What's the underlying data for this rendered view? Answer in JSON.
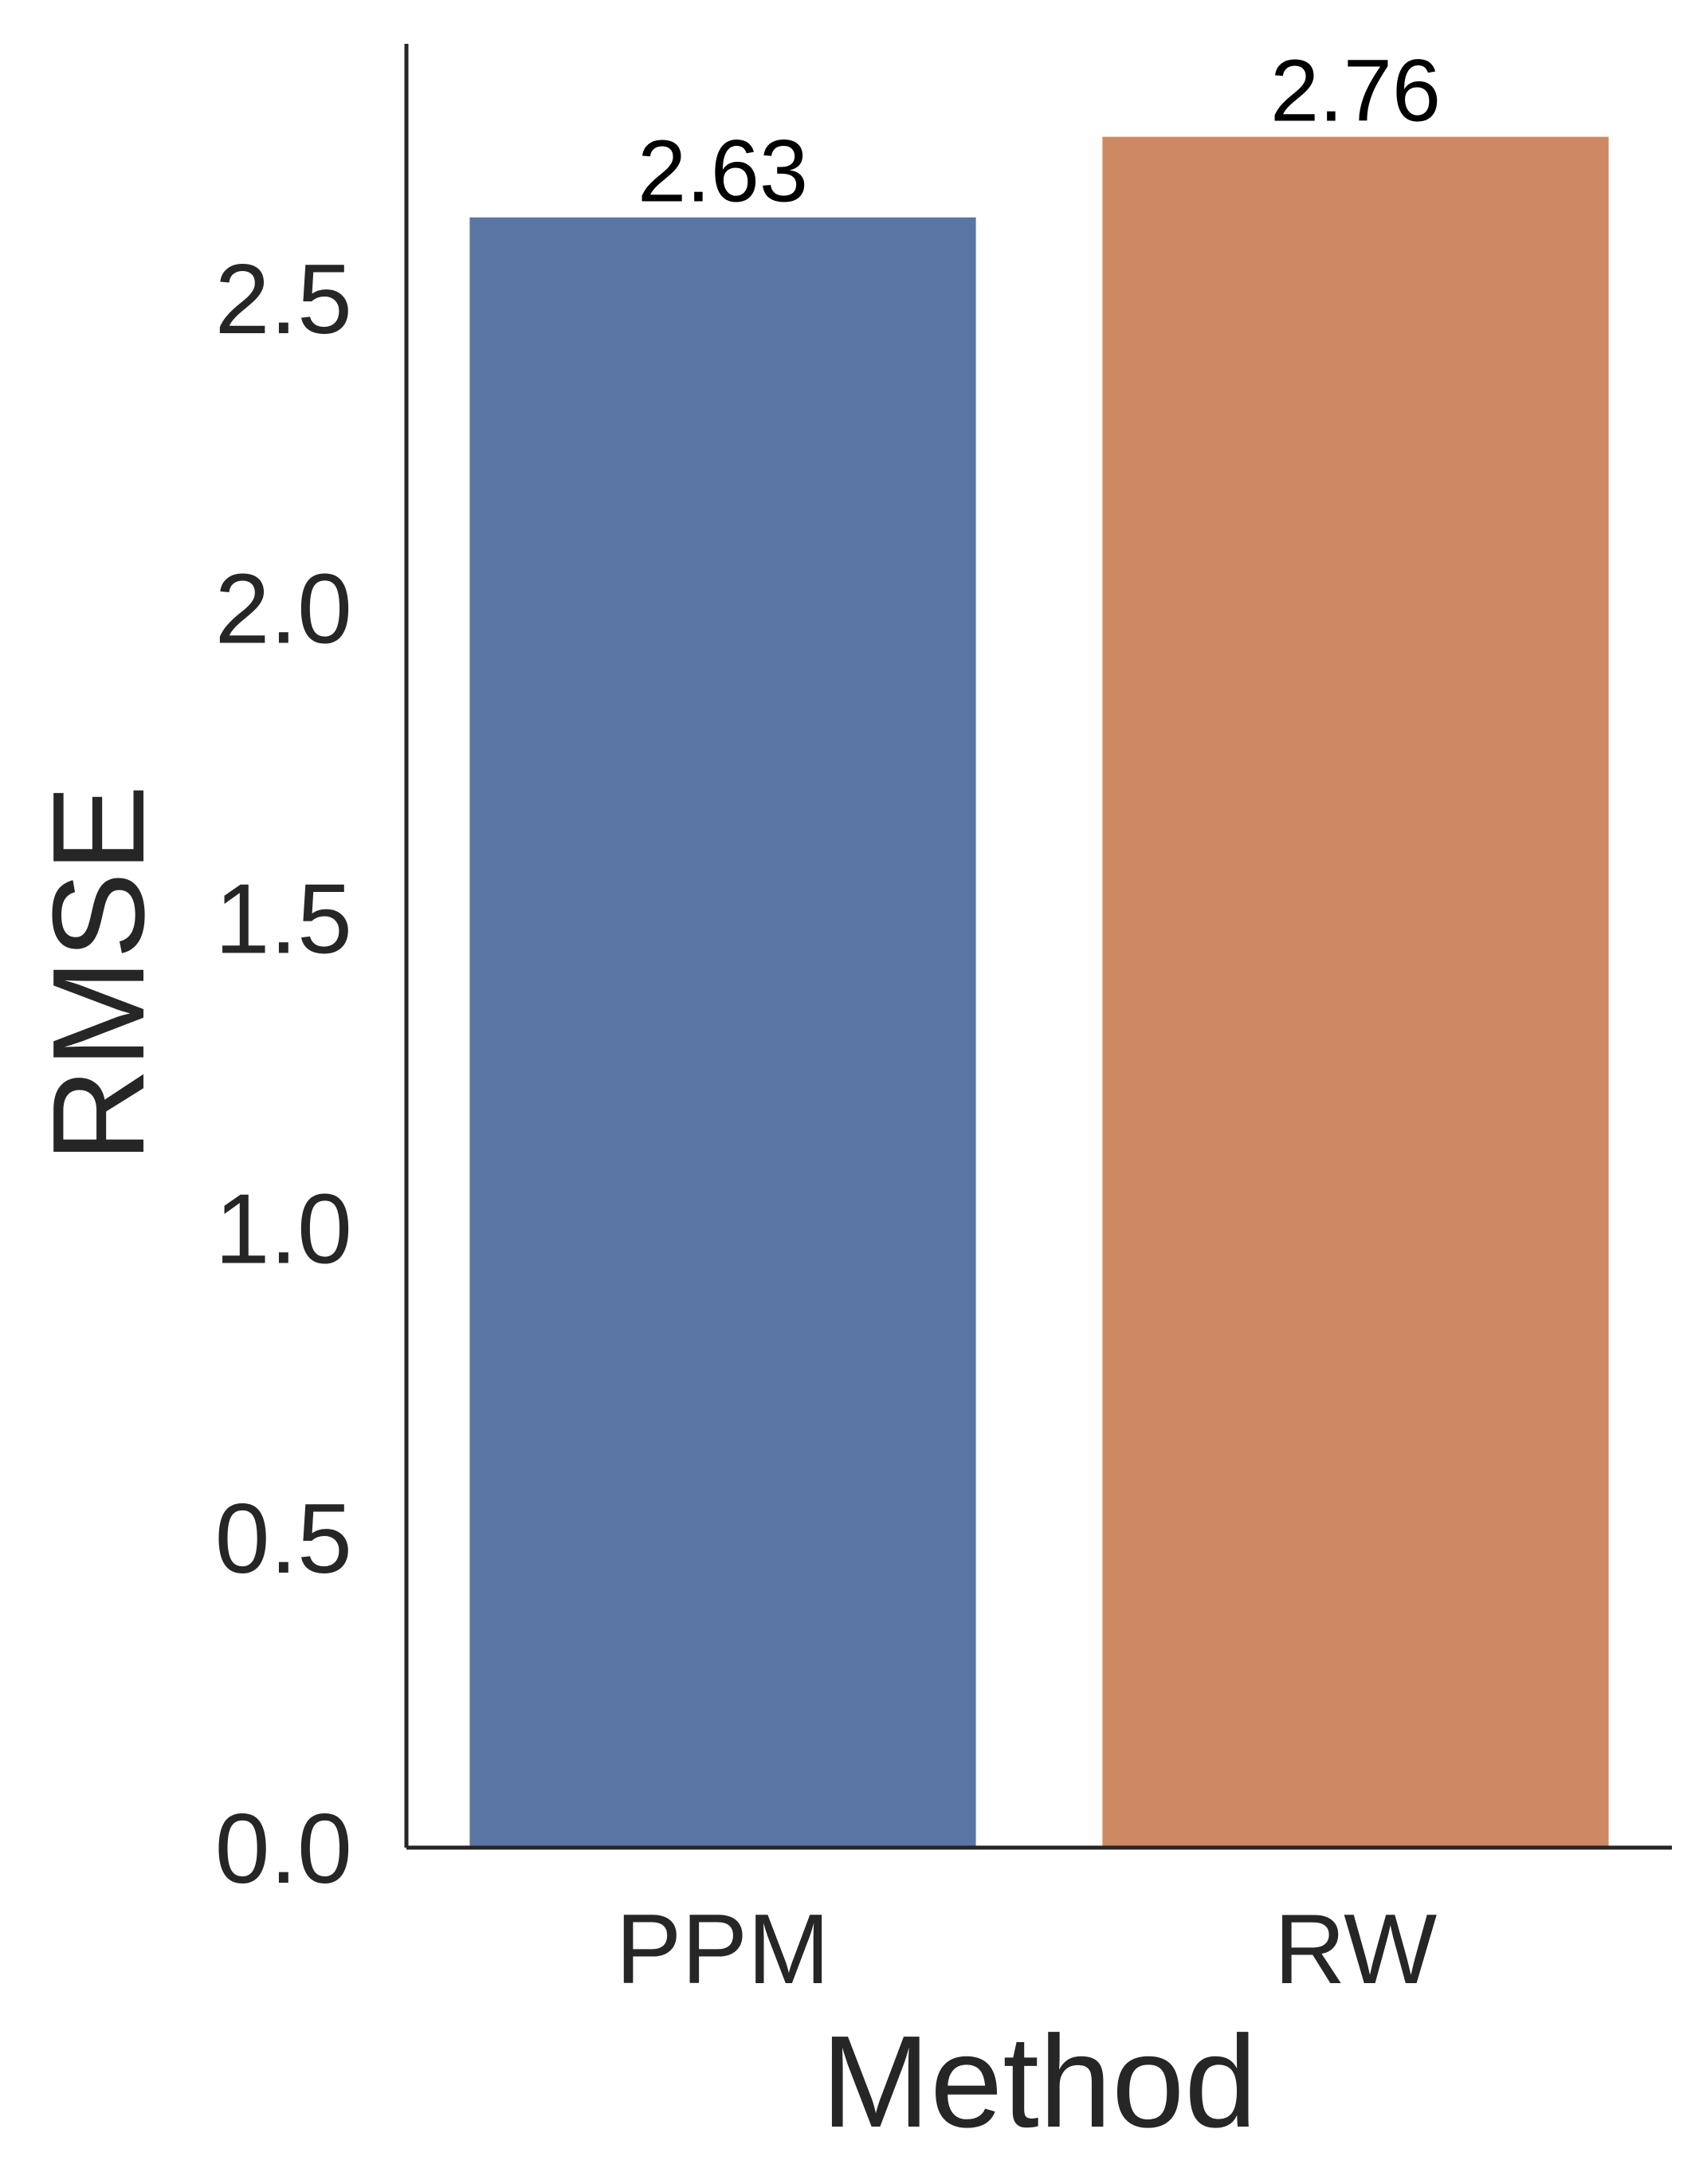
{
  "chart_data": {
    "type": "bar",
    "title": "",
    "xlabel": "Method",
    "ylabel": "RMSE",
    "categories": [
      "PPM",
      "RW"
    ],
    "values": [
      2.63,
      2.76
    ],
    "value_labels": [
      "2.63",
      "2.76"
    ],
    "colors": [
      "#5975a4",
      "#cc8963"
    ],
    "ylim": [
      0,
      2.91
    ],
    "yticks": [
      0.0,
      0.5,
      1.0,
      1.5,
      2.0,
      2.5
    ],
    "ytick_labels": [
      "0.0",
      "0.5",
      "1.0",
      "1.5",
      "2.0",
      "2.5"
    ],
    "grid": false,
    "legend": false
  }
}
